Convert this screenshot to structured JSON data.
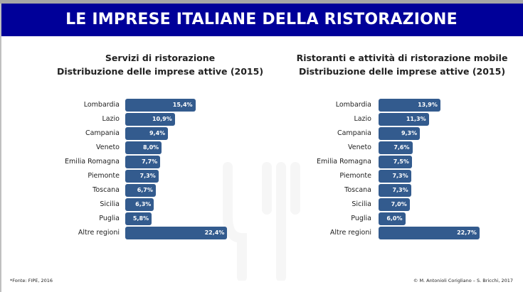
{
  "header": {
    "title": "LE IMPRESE ITALIANE DELLA RISTORAZIONE"
  },
  "colors": {
    "header_bg": "#000099",
    "bar": "#335b8e"
  },
  "chart_data": [
    {
      "type": "bar",
      "orientation": "horizontal",
      "title_line1": "Servizi di ristorazione",
      "title_line2": "Distribuzione delle imprese attive (2015)",
      "categories": [
        "Lombardia",
        "Lazio",
        "Campania",
        "Veneto",
        "Emilia Romagna",
        "Piemonte",
        "Toscana",
        "Sicilia",
        "Puglia",
        "Altre regioni"
      ],
      "values": [
        15.4,
        10.9,
        9.4,
        8.0,
        7.7,
        7.3,
        6.7,
        6.3,
        5.8,
        22.4
      ],
      "labels": [
        "15,4%",
        "10,9%",
        "9,4%",
        "8,0%",
        "7,7%",
        "7,3%",
        "6,7%",
        "6,3%",
        "5,8%",
        "22,4%"
      ],
      "unit": "%"
    },
    {
      "type": "bar",
      "orientation": "horizontal",
      "title_line1": "Ristoranti e attività di ristorazione mobile",
      "title_line2": "Distribuzione delle imprese attive (2015)",
      "categories": [
        "Lombardia",
        "Lazio",
        "Campania",
        "Veneto",
        "Emilia Romagna",
        "Piemonte",
        "Toscana",
        "Sicilia",
        "Puglia",
        "Altre regioni"
      ],
      "values": [
        13.9,
        11.3,
        9.3,
        7.6,
        7.5,
        7.3,
        7.3,
        7.0,
        6.0,
        22.7
      ],
      "labels": [
        "13,9%",
        "11,3%",
        "9,3%",
        "7,6%",
        "7,5%",
        "7,3%",
        "7,3%",
        "7,0%",
        "6,0%",
        "22,7%"
      ],
      "unit": "%"
    }
  ],
  "footer": {
    "source": "*Fonte: FIPE, 2016",
    "copyright": "© M. Antonioli Corigliano – S. Bricchi, 2017"
  }
}
